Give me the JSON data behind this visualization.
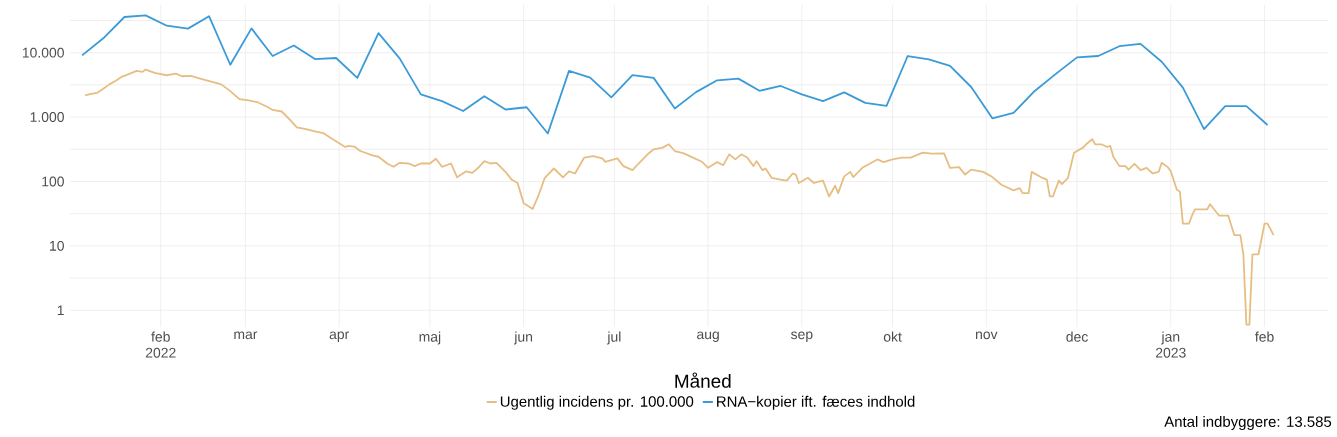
{
  "chart_data": {
    "type": "line",
    "xlabel": "Måned",
    "annotations": [
      "Antal indbyggere: 13.585"
    ],
    "log": "y",
    "grid": true,
    "legend": "bottom",
    "xlim": [
      "2022-01-02",
      "2023-02-22"
    ],
    "ylim": [
      0.55,
      55000
    ],
    "xticks": [
      {
        "value": "2022-02-01",
        "label": "feb 2022"
      },
      {
        "value": "2022-03-01",
        "label": "mar"
      },
      {
        "value": "2022-04-01",
        "label": "apr"
      },
      {
        "value": "2022-05-01",
        "label": "maj"
      },
      {
        "value": "2022-06-01",
        "label": "jun"
      },
      {
        "value": "2022-07-01",
        "label": "jul"
      },
      {
        "value": "2022-08-01",
        "label": "aug"
      },
      {
        "value": "2022-09-01",
        "label": "sep"
      },
      {
        "value": "2022-10-01",
        "label": "okt"
      },
      {
        "value": "2022-11-01",
        "label": "nov"
      },
      {
        "value": "2022-12-01",
        "label": "dec"
      },
      {
        "value": "2023-01-01",
        "label": "jan 2023"
      },
      {
        "value": "2023-02-01",
        "label": "feb"
      }
    ],
    "yticks": [
      1,
      {
        "value": 3.162,
        "label": null
      },
      10,
      {
        "value": 31.62,
        "label": null
      },
      100,
      {
        "value": 316.2,
        "label": null
      },
      {
        "value": 1000,
        "label": "1.000"
      },
      {
        "value": 3162,
        "label": null
      },
      {
        "value": 10000,
        "label": "10.000"
      },
      {
        "value": 31623,
        "label": null
      }
    ],
    "series": [
      {
        "name": "Ugentlig incidens pr. 100.000",
        "color": "#e6be83",
        "x": [
          "2022-01-07",
          "2022-01-09",
          "2022-01-11",
          "2022-01-13",
          "2022-01-15",
          "2022-01-17",
          "2022-01-19",
          "2022-01-21",
          "2022-01-24",
          "2022-01-26",
          "2022-01-27",
          "2022-01-30",
          "2022-02-03",
          "2022-02-06",
          "2022-02-08",
          "2022-02-11",
          "2022-02-14",
          "2022-02-18",
          "2022-02-21",
          "2022-02-24",
          "2022-02-27",
          "2022-03-02",
          "2022-03-05",
          "2022-03-08",
          "2022-03-10",
          "2022-03-13",
          "2022-03-16",
          "2022-03-18",
          "2022-03-21",
          "2022-03-24",
          "2022-03-27",
          "2022-03-29",
          "2022-04-01",
          "2022-04-03",
          "2022-04-04",
          "2022-04-06",
          "2022-04-08",
          "2022-04-12",
          "2022-04-14",
          "2022-04-17",
          "2022-04-19",
          "2022-04-21",
          "2022-04-24",
          "2022-04-26",
          "2022-04-28",
          "2022-05-01",
          "2022-05-03",
          "2022-05-05",
          "2022-05-08",
          "2022-05-10",
          "2022-05-13",
          "2022-05-15",
          "2022-05-17",
          "2022-05-19",
          "2022-05-21",
          "2022-05-23",
          "2022-05-26",
          "2022-05-28",
          "2022-05-30",
          "2022-05-31",
          "2022-06-01",
          "2022-06-02",
          "2022-06-04",
          "2022-06-06",
          "2022-06-08",
          "2022-06-11",
          "2022-06-14",
          "2022-06-16",
          "2022-06-18",
          "2022-06-21",
          "2022-06-24",
          "2022-06-27",
          "2022-06-28",
          "2022-07-02",
          "2022-07-04",
          "2022-07-07",
          "2022-07-09",
          "2022-07-12",
          "2022-07-14",
          "2022-07-17",
          "2022-07-19",
          "2022-07-21",
          "2022-07-24",
          "2022-07-27",
          "2022-07-30",
          "2022-08-01",
          "2022-08-04",
          "2022-08-06",
          "2022-08-08",
          "2022-08-10",
          "2022-08-12",
          "2022-08-14",
          "2022-08-16",
          "2022-08-17",
          "2022-08-19",
          "2022-08-20",
          "2022-08-22",
          "2022-08-25",
          "2022-08-27",
          "2022-08-29",
          "2022-08-30",
          "2022-08-31",
          "2022-09-03",
          "2022-09-05",
          "2022-09-08",
          "2022-09-10",
          "2022-09-12",
          "2022-09-13",
          "2022-09-15",
          "2022-09-17",
          "2022-09-18",
          "2022-09-21",
          "2022-09-24",
          "2022-09-26",
          "2022-09-28",
          "2022-10-01",
          "2022-10-04",
          "2022-10-07",
          "2022-10-11",
          "2022-10-14",
          "2022-10-18",
          "2022-10-20",
          "2022-10-23",
          "2022-10-25",
          "2022-10-27",
          "2022-10-31",
          "2022-11-03",
          "2022-11-06",
          "2022-11-10",
          "2022-11-12",
          "2022-11-13",
          "2022-11-15",
          "2022-11-16",
          "2022-11-19",
          "2022-11-21",
          "2022-11-22",
          "2022-11-23",
          "2022-11-25",
          "2022-11-26",
          "2022-11-28",
          "2022-11-30",
          "2022-12-03",
          "2022-12-04",
          "2022-12-06",
          "2022-12-07",
          "2022-12-09",
          "2022-12-11",
          "2022-12-12",
          "2022-12-13",
          "2022-12-15",
          "2022-12-17",
          "2022-12-18",
          "2022-12-20",
          "2022-12-22",
          "2022-12-24",
          "2022-12-26",
          "2022-12-28",
          "2022-12-29",
          "2022-12-31",
          "2023-01-01",
          "2023-01-03",
          "2023-01-04",
          "2023-01-05",
          "2023-01-07",
          "2023-01-08",
          "2023-01-09",
          "2023-01-13",
          "2023-01-14",
          "2023-01-17",
          "2023-01-20",
          "2023-01-22",
          "2023-01-24",
          "2023-01-25",
          "2023-01-26",
          "2023-01-27",
          "2023-01-28",
          "2023-01-30",
          "2023-02-01",
          "2023-02-02",
          "2023-02-04"
        ],
        "values": [
          2170,
          2300,
          2380,
          2750,
          3220,
          3630,
          4200,
          4570,
          5220,
          5030,
          5470,
          4850,
          4460,
          4730,
          4300,
          4360,
          3950,
          3510,
          3220,
          2530,
          1900,
          1810,
          1700,
          1460,
          1290,
          1220,
          878,
          690,
          650,
          597,
          556,
          481,
          392,
          343,
          356,
          348,
          297,
          254,
          242,
          188,
          169,
          195,
          190,
          173,
          190,
          190,
          225,
          169,
          190,
          116,
          144,
          136,
          163,
          207,
          190,
          195,
          141,
          107,
          94.7,
          65.9,
          45.9,
          43.2,
          37.4,
          62.1,
          114,
          159,
          116,
          144,
          133,
          234,
          248,
          228,
          202,
          228,
          173,
          150,
          190,
          264,
          316,
          335,
          378,
          297,
          273,
          234,
          202,
          163,
          200,
          179,
          264,
          220,
          264,
          234,
          173,
          207,
          150,
          159,
          114,
          107,
          103,
          133,
          128,
          94.7,
          114,
          94.7,
          103,
          58.5,
          85.9,
          65.9,
          120,
          141,
          117,
          163,
          195,
          220,
          200,
          220,
          234,
          234,
          280,
          270,
          273,
          163,
          167,
          128,
          153,
          141,
          117,
          89.1,
          72.6,
          79.0,
          65.9,
          65.9,
          141,
          117,
          107,
          58.5,
          58.5,
          103,
          91.2,
          114,
          280,
          335,
          378,
          453,
          378,
          378,
          343,
          356,
          242,
          173,
          173,
          153,
          188,
          150,
          163,
          133,
          141,
          195,
          167,
          144,
          74.3,
          70.0,
          22.1,
          22.1,
          29.4,
          36.8,
          36.8,
          44.2,
          29.4,
          29.4,
          14.7,
          14.7,
          7.4,
          0.6,
          0.6,
          7.4,
          7.4,
          22.1,
          22.1,
          14.7
        ]
      },
      {
        "name": "RNA−kopier ift. fæces indhold",
        "color": "#3b9ad8",
        "x": [
          "2022-01-06",
          "2022-01-13",
          "2022-01-20",
          "2022-01-27",
          "2022-02-03",
          "2022-02-10",
          "2022-02-17",
          "2022-02-24",
          "2022-03-03",
          "2022-03-10",
          "2022-03-17",
          "2022-03-24",
          "2022-03-31",
          "2022-04-07",
          "2022-04-14",
          "2022-04-21",
          "2022-04-28",
          "2022-05-05",
          "2022-05-12",
          "2022-05-19",
          "2022-05-26",
          "2022-06-02",
          "2022-06-09",
          "2022-06-16",
          "2022-06-23",
          "2022-06-30",
          "2022-07-07",
          "2022-07-14",
          "2022-07-21",
          "2022-07-28",
          "2022-08-04",
          "2022-08-11",
          "2022-08-18",
          "2022-08-25",
          "2022-09-01",
          "2022-09-08",
          "2022-09-15",
          "2022-09-22",
          "2022-09-29",
          "2022-10-06",
          "2022-10-13",
          "2022-10-20",
          "2022-10-27",
          "2022-11-03",
          "2022-11-10",
          "2022-11-17",
          "2022-11-24",
          "2022-12-01",
          "2022-12-08",
          "2022-12-15",
          "2022-12-22",
          "2022-12-29",
          "2023-01-05",
          "2023-01-12",
          "2023-01-19",
          "2023-01-26",
          "2023-02-02"
        ],
        "values": [
          9070,
          16700,
          35800,
          38000,
          26200,
          23600,
          36700,
          6490,
          23800,
          8870,
          12900,
          7960,
          8270,
          4050,
          20100,
          8150,
          2250,
          1770,
          1240,
          2110,
          1310,
          1420,
          556,
          5220,
          4100,
          2020,
          4470,
          4060,
          1360,
          2440,
          3720,
          3950,
          2560,
          3040,
          2250,
          1770,
          2420,
          1660,
          1490,
          8870,
          7850,
          6250,
          2930,
          955,
          1160,
          2540,
          4690,
          8450,
          8870,
          12600,
          13700,
          7220,
          2860,
          650,
          1480,
          1480,
          752
        ]
      }
    ]
  }
}
